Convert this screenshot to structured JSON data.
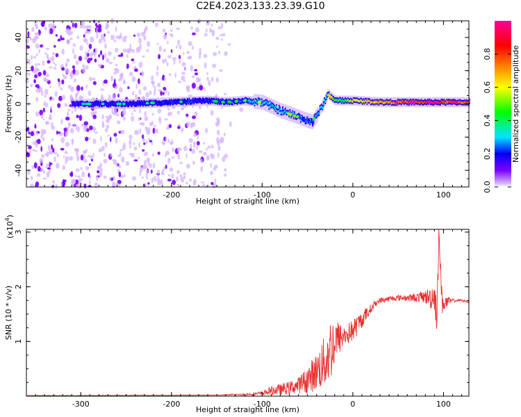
{
  "title": "C2E4.2023.133.23.39.G10",
  "chart_data": [
    {
      "type": "heatmap",
      "title": "C2E4.2023.133.23.39.G10",
      "xlabel": "Height of straight line (km)",
      "ylabel": "Frequency (Hz)",
      "xlim": [
        -360,
        128
      ],
      "ylim": [
        -50,
        50
      ],
      "x_ticks": [
        -300,
        -200,
        -100,
        0,
        100
      ],
      "y_ticks": [
        -40,
        -20,
        0,
        20,
        40
      ],
      "colorbar": {
        "label": "Normalized spectral amplitude",
        "ticks": [
          0.0,
          0.2,
          0.4,
          0.6,
          0.8
        ],
        "range": [
          0,
          1
        ],
        "colors": [
          "#ffffff",
          "#d9b8ff",
          "#7a00ff",
          "#0000ff",
          "#00e5ff",
          "#00ff00",
          "#ffff00",
          "#ff8800",
          "#ff0000",
          "#ff0099"
        ]
      },
      "noise_region": {
        "x_from": -360,
        "x_to": -140,
        "amplitude": 0.15
      },
      "ridge": [
        {
          "x": -300,
          "f": 0,
          "amp": 0.28
        },
        {
          "x": -250,
          "f": 0,
          "amp": 0.3
        },
        {
          "x": -200,
          "f": 1,
          "amp": 0.32
        },
        {
          "x": -160,
          "f": 2,
          "amp": 0.33
        },
        {
          "x": -140,
          "f": 1,
          "amp": 0.35
        },
        {
          "x": -120,
          "f": 2,
          "amp": 0.4
        },
        {
          "x": -100,
          "f": 1,
          "amp": 0.45
        },
        {
          "x": -80,
          "f": -4,
          "amp": 0.45
        },
        {
          "x": -60,
          "f": -8,
          "amp": 0.4
        },
        {
          "x": -45,
          "f": -11,
          "amp": 0.35
        },
        {
          "x": -35,
          "f": -2,
          "amp": 0.45
        },
        {
          "x": -28,
          "f": 6,
          "amp": 0.5
        },
        {
          "x": -20,
          "f": 2,
          "amp": 0.55
        },
        {
          "x": -5,
          "f": 2,
          "amp": 0.6
        },
        {
          "x": 0,
          "f": 2,
          "amp": 0.65
        },
        {
          "x": 30,
          "f": 1,
          "amp": 0.75
        },
        {
          "x": 60,
          "f": 1,
          "amp": 0.8
        },
        {
          "x": 90,
          "f": 1,
          "amp": 0.85
        },
        {
          "x": 128,
          "f": 1,
          "amp": 0.8
        }
      ]
    },
    {
      "type": "line",
      "xlabel": "Height of straight line (km)",
      "ylabel": "SNR (10 * v/v)",
      "y_multiplier_label": "(x10",
      "y_multiplier_exp": "4",
      "y_multiplier_close": ")",
      "xlim": [
        -360,
        128
      ],
      "ylim": [
        0,
        3.05
      ],
      "x_ticks": [
        -300,
        -200,
        -100,
        0,
        100
      ],
      "y_ticks": [
        1,
        2,
        3
      ],
      "color": "#e83030",
      "series": [
        {
          "x": [
            -360,
            -300,
            -250,
            -200,
            -150,
            -120,
            -100,
            -90,
            -80,
            -70,
            -60,
            -50,
            -40,
            -30,
            -25,
            -20,
            -15,
            -10,
            -5,
            0,
            5,
            10,
            15,
            20,
            25,
            30,
            40,
            50,
            60,
            70,
            80,
            85,
            90,
            93,
            95,
            98,
            100,
            110,
            120,
            128
          ],
          "y": [
            0.01,
            0.01,
            0.015,
            0.015,
            0.02,
            0.03,
            0.05,
            0.1,
            0.12,
            0.15,
            0.2,
            0.3,
            0.45,
            0.65,
            0.85,
            1.0,
            1.05,
            1.1,
            1.15,
            1.2,
            1.3,
            1.4,
            1.5,
            1.6,
            1.7,
            1.75,
            1.78,
            1.8,
            1.8,
            1.8,
            1.82,
            1.8,
            1.85,
            1.5,
            3.05,
            1.75,
            1.7,
            1.75,
            1.75,
            1.72
          ],
          "spread": [
            0,
            0,
            0,
            0,
            0,
            0.02,
            0.04,
            0.08,
            0.1,
            0.12,
            0.15,
            0.25,
            0.35,
            0.5,
            0.6,
            0.5,
            0.3,
            0.2,
            0.2,
            0.2,
            0.2,
            0.15,
            0.12,
            0.08,
            0.06,
            0.05,
            0.05,
            0.05,
            0.06,
            0.08,
            0.12,
            0.2,
            0.3,
            0.4,
            0.1,
            0.3,
            0.15,
            0.03,
            0.02,
            0.02
          ]
        }
      ]
    }
  ]
}
